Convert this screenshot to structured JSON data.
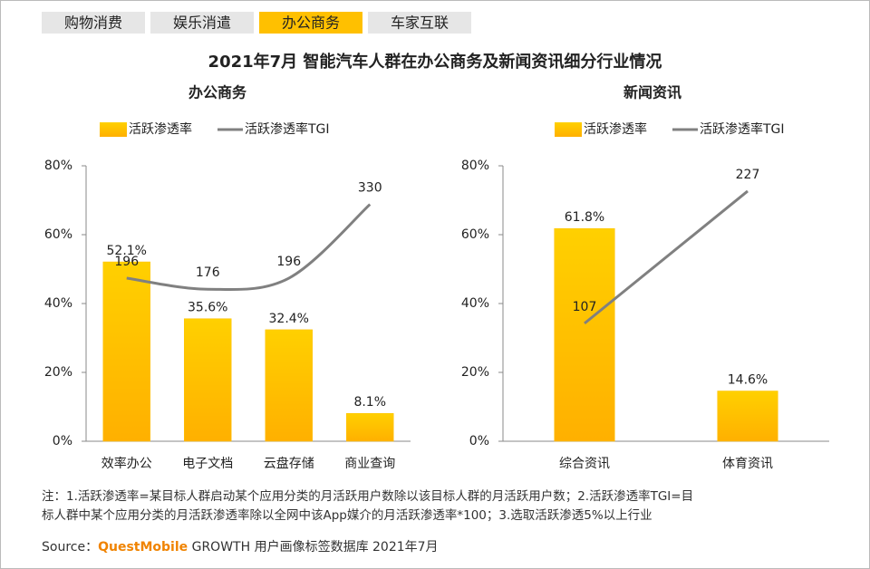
{
  "tabs": {
    "items": [
      "购物消费",
      "娱乐消遣",
      "办公商务",
      "车家互联"
    ],
    "active": 2
  },
  "title": "2021年7月 智能汽车人群在办公商务及新闻资讯细分行业情况",
  "chart_data": [
    {
      "type": "bar",
      "title": "办公商务",
      "categories": [
        "效率办公",
        "电子文档",
        "云盘存储",
        "商业查询"
      ],
      "series": [
        {
          "name": "活跃渗透率",
          "color": "#FFC000",
          "values": [
            52.1,
            35.6,
            32.4,
            8.1
          ],
          "value_labels": [
            "52.1%",
            "35.6%",
            "32.4%",
            "8.1%"
          ]
        },
        {
          "name": "活跃渗透率TGI",
          "color": "#808080",
          "type": "line",
          "axis": "y2",
          "smooth": true,
          "values": [
            196,
            176,
            196,
            330
          ]
        }
      ],
      "ylim": [
        0,
        80
      ],
      "yticks": [
        {
          "value": 0,
          "label": "0%"
        },
        {
          "value": 20,
          "label": "20%"
        },
        {
          "value": 40,
          "label": "40%"
        },
        {
          "value": 60,
          "label": "60%"
        },
        {
          "value": 80,
          "label": "80%"
        }
      ],
      "y2lim": [
        -100,
        400
      ]
    },
    {
      "type": "bar",
      "title": "新闻资讯",
      "categories": [
        "综合资讯",
        "体育资讯"
      ],
      "series": [
        {
          "name": "活跃渗透率",
          "color": "#FFC000",
          "values": [
            61.8,
            14.6
          ],
          "value_labels": [
            "61.8%",
            "14.6%"
          ]
        },
        {
          "name": "活跃渗透率TGI",
          "color": "#808080",
          "type": "line",
          "axis": "y2",
          "smooth": false,
          "values": [
            107,
            227
          ]
        }
      ],
      "ylim": [
        0,
        80
      ],
      "yticks": [
        {
          "value": 0,
          "label": "0%"
        },
        {
          "value": 20,
          "label": "20%"
        },
        {
          "value": 40,
          "label": "40%"
        },
        {
          "value": 60,
          "label": "60%"
        },
        {
          "value": 80,
          "label": "80%"
        }
      ],
      "y2lim": [
        0,
        250
      ]
    }
  ],
  "note": [
    "注：1.活跃渗透率=某目标人群启动某个应用分类的月活跃用户数除以该目标人群的月活跃用户数；2.活跃渗透率TGI=目",
    "标人群中某个应用分类的月活跃渗透率除以全网中该App媒介的月活跃渗透率*100；3.选取活跃渗透5%以上行业"
  ],
  "source": {
    "prefix": "Source：",
    "brand": "QuestMobile",
    "text": " GROWTH 用户画像标签数据库 2021年7月"
  }
}
